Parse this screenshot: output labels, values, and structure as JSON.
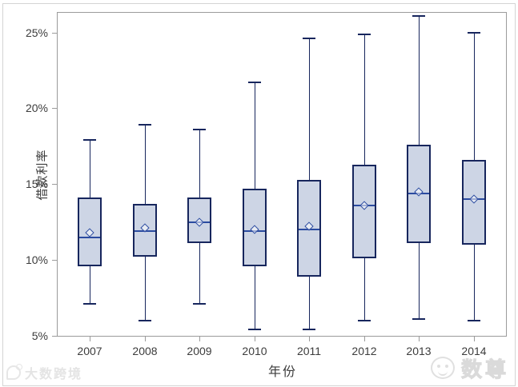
{
  "watermarks": {
    "bottom_left": "大数跨境",
    "bottom_right": "数尊"
  },
  "chart_data": {
    "type": "boxplot",
    "title": "",
    "xlabel": "年份",
    "ylabel": "借款利率",
    "categories": [
      "2007",
      "2008",
      "2009",
      "2010",
      "2011",
      "2012",
      "2013",
      "2014"
    ],
    "yticks": [
      5,
      10,
      15,
      20,
      25
    ],
    "ytick_suffix": "%",
    "ylim": [
      4.95,
      26.35
    ],
    "grid": false,
    "legend": "none",
    "boxes": [
      {
        "category": "2007",
        "whisker_low": 7.1,
        "q1": 9.6,
        "median": 11.5,
        "mean": 11.8,
        "q3": 14.1,
        "whisker_high": 17.9
      },
      {
        "category": "2008",
        "whisker_low": 6.0,
        "q1": 10.2,
        "median": 11.9,
        "mean": 12.1,
        "q3": 13.7,
        "whisker_high": 18.9
      },
      {
        "category": "2009",
        "whisker_low": 7.1,
        "q1": 11.1,
        "median": 12.5,
        "mean": 12.5,
        "q3": 14.1,
        "whisker_high": 18.6
      },
      {
        "category": "2010",
        "whisker_low": 5.4,
        "q1": 9.6,
        "median": 11.9,
        "mean": 12.0,
        "q3": 14.7,
        "whisker_high": 21.7
      },
      {
        "category": "2011",
        "whisker_low": 5.4,
        "q1": 8.9,
        "median": 12.0,
        "mean": 12.2,
        "q3": 15.3,
        "whisker_high": 24.6
      },
      {
        "category": "2012",
        "whisker_low": 6.0,
        "q1": 10.1,
        "median": 13.6,
        "mean": 13.6,
        "q3": 16.3,
        "whisker_high": 24.9
      },
      {
        "category": "2013",
        "whisker_low": 6.1,
        "q1": 11.1,
        "median": 14.4,
        "mean": 14.5,
        "q3": 17.6,
        "whisker_high": 26.1
      },
      {
        "category": "2014",
        "whisker_low": 6.0,
        "q1": 11.0,
        "median": 14.0,
        "mean": 14.0,
        "q3": 16.6,
        "whisker_high": 25.0
      }
    ],
    "colors": {
      "box_fill": "#cdd5e5",
      "box_border": "#17265d",
      "median": "#2b4ba0",
      "mean_marker": "#2b4ba0",
      "whisker": "#17265d",
      "frame": "#9b9b9b",
      "text": "#3c3c3c",
      "watermark": "#e2e2e2"
    }
  }
}
